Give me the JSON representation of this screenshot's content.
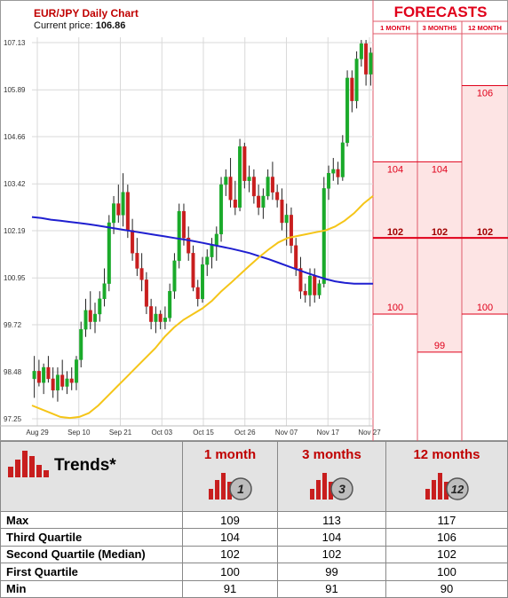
{
  "chart_data": {
    "type": "candlestick",
    "title": "EUR/JPY Daily Chart",
    "price_label": "Current price:",
    "current_price": "106.86",
    "y_ticks": [
      "107.13",
      "105.89",
      "104.66",
      "103.42",
      "102.19",
      "100.95",
      "99.72",
      "98.48",
      "97.25"
    ],
    "y_range": [
      97.25,
      107.13
    ],
    "x_ticks": [
      "Aug 29",
      "Sep 10",
      "Sep 21",
      "Oct 03",
      "Oct 15",
      "Oct 26",
      "Nov 07",
      "Nov 17",
      "Nov 27"
    ],
    "grid": true,
    "candles": [
      {
        "o": 98.3,
        "h": 98.9,
        "l": 97.8,
        "c": 98.5
      },
      {
        "o": 98.5,
        "h": 98.8,
        "l": 98.1,
        "c": 98.2
      },
      {
        "o": 98.2,
        "h": 98.7,
        "l": 97.9,
        "c": 98.6
      },
      {
        "o": 98.6,
        "h": 98.9,
        "l": 98.2,
        "c": 98.3
      },
      {
        "o": 98.3,
        "h": 98.6,
        "l": 97.8,
        "c": 98.0
      },
      {
        "o": 98.0,
        "h": 98.6,
        "l": 97.7,
        "c": 98.4
      },
      {
        "o": 98.4,
        "h": 98.8,
        "l": 98.0,
        "c": 98.1
      },
      {
        "o": 98.1,
        "h": 98.5,
        "l": 97.9,
        "c": 98.3
      },
      {
        "o": 98.3,
        "h": 98.6,
        "l": 98.0,
        "c": 98.2
      },
      {
        "o": 98.2,
        "h": 98.9,
        "l": 98.0,
        "c": 98.8
      },
      {
        "o": 98.8,
        "h": 99.8,
        "l": 98.6,
        "c": 99.6
      },
      {
        "o": 99.6,
        "h": 100.4,
        "l": 99.4,
        "c": 100.1
      },
      {
        "o": 100.1,
        "h": 100.6,
        "l": 99.6,
        "c": 99.8
      },
      {
        "o": 99.8,
        "h": 100.3,
        "l": 99.5,
        "c": 100.0
      },
      {
        "o": 100.0,
        "h": 100.6,
        "l": 99.8,
        "c": 100.4
      },
      {
        "o": 100.4,
        "h": 101.2,
        "l": 100.2,
        "c": 100.8
      },
      {
        "o": 100.8,
        "h": 102.6,
        "l": 100.6,
        "c": 102.4
      },
      {
        "o": 102.4,
        "h": 103.1,
        "l": 102.1,
        "c": 102.9
      },
      {
        "o": 102.9,
        "h": 103.4,
        "l": 102.4,
        "c": 102.6
      },
      {
        "o": 102.6,
        "h": 103.7,
        "l": 102.3,
        "c": 103.2
      },
      {
        "o": 103.2,
        "h": 103.4,
        "l": 102.0,
        "c": 102.2
      },
      {
        "o": 102.2,
        "h": 102.5,
        "l": 101.4,
        "c": 101.6
      },
      {
        "o": 101.6,
        "h": 102.0,
        "l": 101.0,
        "c": 101.2
      },
      {
        "o": 101.2,
        "h": 101.6,
        "l": 100.6,
        "c": 100.9
      },
      {
        "o": 100.9,
        "h": 101.1,
        "l": 100.0,
        "c": 100.2
      },
      {
        "o": 100.2,
        "h": 100.4,
        "l": 99.6,
        "c": 99.8
      },
      {
        "o": 99.8,
        "h": 100.2,
        "l": 99.5,
        "c": 100.0
      },
      {
        "o": 100.0,
        "h": 100.1,
        "l": 99.6,
        "c": 99.8
      },
      {
        "o": 99.8,
        "h": 100.2,
        "l": 99.6,
        "c": 99.9
      },
      {
        "o": 99.9,
        "h": 100.8,
        "l": 99.8,
        "c": 100.6
      },
      {
        "o": 100.6,
        "h": 101.6,
        "l": 100.4,
        "c": 101.4
      },
      {
        "o": 101.4,
        "h": 102.9,
        "l": 101.2,
        "c": 102.7
      },
      {
        "o": 102.7,
        "h": 102.9,
        "l": 101.8,
        "c": 102.0
      },
      {
        "o": 102.0,
        "h": 102.3,
        "l": 101.4,
        "c": 101.6
      },
      {
        "o": 101.6,
        "h": 101.8,
        "l": 100.6,
        "c": 100.7
      },
      {
        "o": 100.7,
        "h": 100.9,
        "l": 100.2,
        "c": 100.4
      },
      {
        "o": 100.4,
        "h": 101.5,
        "l": 100.3,
        "c": 101.3
      },
      {
        "o": 101.3,
        "h": 101.7,
        "l": 101.0,
        "c": 101.5
      },
      {
        "o": 101.5,
        "h": 102.0,
        "l": 101.2,
        "c": 101.8
      },
      {
        "o": 101.8,
        "h": 102.3,
        "l": 101.4,
        "c": 102.1
      },
      {
        "o": 102.1,
        "h": 103.6,
        "l": 101.9,
        "c": 103.4
      },
      {
        "o": 103.4,
        "h": 103.8,
        "l": 103.1,
        "c": 103.6
      },
      {
        "o": 103.6,
        "h": 104.1,
        "l": 102.8,
        "c": 103.0
      },
      {
        "o": 103.0,
        "h": 103.5,
        "l": 102.6,
        "c": 102.8
      },
      {
        "o": 102.8,
        "h": 104.6,
        "l": 102.7,
        "c": 104.4
      },
      {
        "o": 104.4,
        "h": 104.5,
        "l": 103.3,
        "c": 103.5
      },
      {
        "o": 103.5,
        "h": 103.9,
        "l": 103.2,
        "c": 103.6
      },
      {
        "o": 103.6,
        "h": 103.8,
        "l": 102.9,
        "c": 103.1
      },
      {
        "o": 103.1,
        "h": 103.4,
        "l": 102.6,
        "c": 102.8
      },
      {
        "o": 102.8,
        "h": 103.3,
        "l": 102.5,
        "c": 103.1
      },
      {
        "o": 103.1,
        "h": 103.8,
        "l": 103.0,
        "c": 103.6
      },
      {
        "o": 103.6,
        "h": 104.0,
        "l": 103.0,
        "c": 103.2
      },
      {
        "o": 103.2,
        "h": 103.4,
        "l": 102.8,
        "c": 103.0
      },
      {
        "o": 103.0,
        "h": 103.3,
        "l": 102.2,
        "c": 102.4
      },
      {
        "o": 102.4,
        "h": 102.9,
        "l": 101.8,
        "c": 102.6
      },
      {
        "o": 102.6,
        "h": 102.8,
        "l": 101.6,
        "c": 101.8
      },
      {
        "o": 101.8,
        "h": 102.0,
        "l": 101.0,
        "c": 101.2
      },
      {
        "o": 101.2,
        "h": 101.5,
        "l": 100.4,
        "c": 100.6
      },
      {
        "o": 100.6,
        "h": 100.8,
        "l": 100.3,
        "c": 100.5
      },
      {
        "o": 100.5,
        "h": 101.2,
        "l": 100.2,
        "c": 101.0
      },
      {
        "o": 101.0,
        "h": 101.2,
        "l": 100.3,
        "c": 100.5
      },
      {
        "o": 100.5,
        "h": 100.9,
        "l": 100.4,
        "c": 100.8
      },
      {
        "o": 100.8,
        "h": 103.6,
        "l": 100.7,
        "c": 103.3
      },
      {
        "o": 103.3,
        "h": 103.9,
        "l": 103.0,
        "c": 103.7
      },
      {
        "o": 103.7,
        "h": 104.1,
        "l": 103.5,
        "c": 103.8
      },
      {
        "o": 103.8,
        "h": 104.0,
        "l": 103.4,
        "c": 103.6
      },
      {
        "o": 103.6,
        "h": 104.7,
        "l": 103.5,
        "c": 104.5
      },
      {
        "o": 104.5,
        "h": 106.4,
        "l": 104.4,
        "c": 106.2
      },
      {
        "o": 106.2,
        "h": 106.4,
        "l": 105.3,
        "c": 105.6
      },
      {
        "o": 105.6,
        "h": 106.9,
        "l": 105.4,
        "c": 106.7
      },
      {
        "o": 106.7,
        "h": 107.2,
        "l": 106.5,
        "c": 107.1
      },
      {
        "o": 107.1,
        "h": 107.2,
        "l": 106.0,
        "c": 106.3
      },
      {
        "o": 106.3,
        "h": 107.0,
        "l": 106.0,
        "c": 106.86
      }
    ],
    "ma_slow": [
      102.55,
      102.52,
      102.48,
      102.45,
      102.42,
      102.39,
      102.36,
      102.32,
      102.28,
      102.24,
      102.2,
      102.16,
      102.12,
      102.08,
      102.04,
      102.0,
      101.96,
      101.92,
      101.87,
      101.82,
      101.77,
      101.72,
      101.66,
      101.6,
      101.52,
      101.44,
      101.35,
      101.26,
      101.17,
      101.08,
      101.0,
      100.92,
      100.86,
      100.82,
      100.8,
      100.8,
      100.8
    ],
    "ma_fast": [
      97.6,
      97.5,
      97.4,
      97.3,
      97.27,
      97.3,
      97.4,
      97.6,
      97.85,
      98.1,
      98.35,
      98.6,
      98.85,
      99.1,
      99.4,
      99.65,
      99.85,
      100.0,
      100.15,
      100.35,
      100.6,
      100.82,
      101.05,
      101.28,
      101.5,
      101.7,
      101.88,
      102.0,
      102.05,
      102.1,
      102.15,
      102.2,
      102.3,
      102.45,
      102.65,
      102.9,
      103.1
    ]
  },
  "forecasts": {
    "title": "FORECASTS",
    "columns": [
      {
        "label": "1 MONTH",
        "q3": 104,
        "median": 102,
        "q1": 100,
        "q3_label": "104",
        "median_label": "102",
        "q1_label": "100"
      },
      {
        "label": "3 MONTHS",
        "q3": 104,
        "median": 102,
        "q1": 99,
        "q3_label": "104",
        "median_label": "102",
        "q1_label": "99"
      },
      {
        "label": "12 MONTH",
        "q3": 106,
        "median": 102,
        "q1": 100,
        "q3_label": "106",
        "median_label": "102",
        "q1_label": "100"
      }
    ]
  },
  "table": {
    "trends_label": "Trends*",
    "headers": [
      "1 month",
      "3 months",
      "12 months"
    ],
    "icon_numbers": [
      "1",
      "3",
      "12"
    ],
    "rows": [
      {
        "label": "Max",
        "values": [
          "109",
          "113",
          "117"
        ]
      },
      {
        "label": "Third Quartile",
        "values": [
          "104",
          "104",
          "106"
        ]
      },
      {
        "label": "Second Quartile (Median)",
        "values": [
          "102",
          "102",
          "102"
        ]
      },
      {
        "label": "First Quartile",
        "values": [
          "100",
          "99",
          "100"
        ]
      },
      {
        "label": "Min",
        "values": [
          "91",
          "91",
          "90"
        ]
      }
    ]
  },
  "colors": {
    "bull": "#1aaa2a",
    "bear": "#c81e1e",
    "ma_slow": "#1f1fd0",
    "ma_fast": "#f5c518",
    "forecast_red": "#e0001a",
    "forecast_fill": "#fde4e4",
    "title_red": "#c00000"
  }
}
